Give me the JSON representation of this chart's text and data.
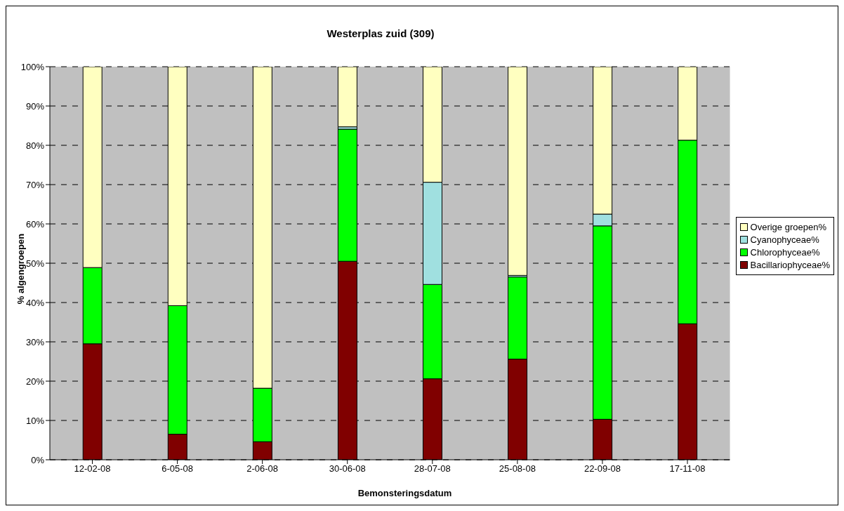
{
  "chart_data": {
    "type": "bar",
    "title": "Westerplas zuid (309)",
    "xlabel": "Bemonsteringsdatum",
    "ylabel": "% algengroepen",
    "stacked": true,
    "categories": [
      "12-02-08",
      "6-05-08",
      "2-06-08",
      "30-06-08",
      "28-07-08",
      "25-08-08",
      "22-09-08",
      "17-11-08"
    ],
    "series": [
      {
        "name": "Bacillariophyceae%",
        "color": "#800000",
        "values": [
          29.5,
          6.5,
          4.6,
          50.5,
          20.6,
          25.6,
          10.3,
          34.6
        ]
      },
      {
        "name": "Chlorophyceae%",
        "color": "#00ff00",
        "values": [
          19.4,
          32.7,
          13.6,
          33.6,
          24.0,
          20.9,
          49.2,
          46.7
        ]
      },
      {
        "name": "Cyanophyceae%",
        "color": "#a0e0e0",
        "values": [
          0,
          0,
          0,
          0.6,
          26.0,
          0.4,
          3.0,
          0
        ]
      },
      {
        "name": "Overige groepen%",
        "color": "#ffffc0",
        "values": [
          51.1,
          60.8,
          81.8,
          15.3,
          29.4,
          53.1,
          37.5,
          18.7
        ]
      }
    ],
    "ylim": [
      0,
      100
    ],
    "yticks": [
      {
        "value": 0,
        "label": "0%"
      },
      {
        "value": 10,
        "label": "10%"
      },
      {
        "value": 20,
        "label": "20%"
      },
      {
        "value": 30,
        "label": "30%"
      },
      {
        "value": 40,
        "label": "40%"
      },
      {
        "value": 50,
        "label": "50%"
      },
      {
        "value": 60,
        "label": "60%"
      },
      {
        "value": 70,
        "label": "70%"
      },
      {
        "value": 80,
        "label": "80%"
      },
      {
        "value": 90,
        "label": "90%"
      },
      {
        "value": 100,
        "label": "100%"
      }
    ],
    "grid": "y",
    "legend": "right"
  }
}
